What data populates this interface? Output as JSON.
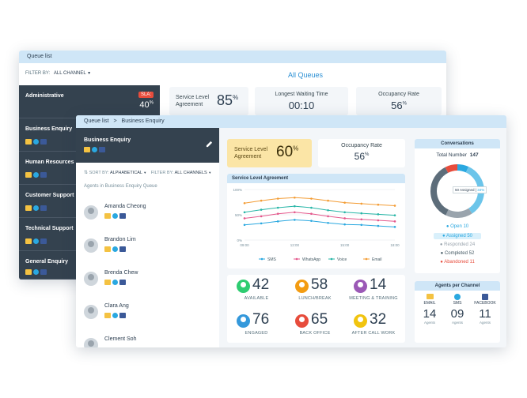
{
  "back": {
    "title": "Queue list",
    "filter_label": "FILTER BY:",
    "filter_value": "ALL CHANNEL",
    "all_queues": "All Queues",
    "sla_badge": "SLA:",
    "first_queue_percent": "40",
    "queues": [
      {
        "name": "Administrative"
      },
      {
        "name": "Business Enquiry"
      },
      {
        "name": "Human Resources"
      },
      {
        "name": "Customer Support"
      },
      {
        "name": "Technical Support"
      },
      {
        "name": "General Enquiry"
      }
    ],
    "sla_label_1": "Service Level",
    "sla_label_2": "Agreement",
    "sla_value": "85",
    "wait_label": "Longest Waiting Time",
    "wait_value": "00:10",
    "occ_label": "Occupancy Rate",
    "occ_value": "56"
  },
  "front": {
    "breadcrumb_root": "Queue list",
    "breadcrumb_sep": ">",
    "breadcrumb_current": "Business Enquiry",
    "queue_name": "Business Enquiry",
    "sort_label": "SORT BY:",
    "sort_value": "ALPHABETICAL",
    "filter_label": "FILTER BY:",
    "filter_value": "ALL CHANNELS",
    "agents_heading": "Agents in Business Enquiry Queue",
    "agents": [
      {
        "name": "Amanda Cheong"
      },
      {
        "name": "Brandon Lim"
      },
      {
        "name": "Brenda Chew"
      },
      {
        "name": "Clara Ang"
      },
      {
        "name": "Clement Soh"
      }
    ],
    "sla_label_1": "Service Level",
    "sla_label_2": "Agreement",
    "sla_value": "60",
    "occ_label": "Occupancy Rate",
    "occ_value": "56",
    "percent_sign": "%",
    "chart_title": "Service Level Agreement",
    "stats": [
      {
        "value": "42",
        "label": "AVAILABLE",
        "color": "#2ecc71"
      },
      {
        "value": "58",
        "label": "LUNCH/BREAK",
        "color": "#f39c12"
      },
      {
        "value": "14",
        "label": "MEETING & TRAINING",
        "color": "#9b59b6"
      },
      {
        "value": "76",
        "label": "ENGAGED",
        "color": "#3498db"
      },
      {
        "value": "65",
        "label": "BACK OFFICE",
        "color": "#e74c3c"
      },
      {
        "value": "32",
        "label": "AFTER CALL WORK",
        "color": "#f1c40f"
      }
    ],
    "conversations": {
      "title": "Conversations",
      "total_label": "Total Number",
      "total_value": "147",
      "tooltip": "50 Assigned |",
      "tooltip_pct": "34%",
      "legend": [
        {
          "label": "Open 10",
          "color": "#2aa8e0"
        },
        {
          "label": "Assigned 50",
          "color": "#2aa8e0"
        },
        {
          "label": "Responded 24",
          "color": "#9aa4ad"
        },
        {
          "label": "Completed 52",
          "color": "#546e7a"
        },
        {
          "label": "Abandoned 11",
          "color": "#e74c3c"
        }
      ]
    },
    "agents_per_channel": {
      "title": "Agents per Channel",
      "channels": [
        {
          "name": "EMAIL",
          "value": "14",
          "sub": "Agents"
        },
        {
          "name": "SMS",
          "value": "09",
          "sub": "Agents"
        },
        {
          "name": "FACEBOOK",
          "value": "11",
          "sub": "Agents"
        }
      ]
    }
  },
  "chart_data": {
    "type": "line",
    "title": "Service Level Agreement",
    "x": [
      "09:00",
      "10:00",
      "11:00",
      "12:00",
      "13:00",
      "14:00",
      "15:00",
      "16:00",
      "17:00",
      "18:00"
    ],
    "x_ticks": [
      "09:00",
      "12:00",
      "15:00",
      "18:00"
    ],
    "y_ticks": [
      "100%",
      "50%",
      "0%"
    ],
    "ylim": [
      0,
      100
    ],
    "grid": true,
    "legend": "bottom",
    "series": [
      {
        "name": "SMS",
        "color": "#2aa8e0",
        "values": [
          30,
          33,
          37,
          40,
          38,
          34,
          31,
          30,
          28,
          26
        ]
      },
      {
        "name": "WhatsApp",
        "color": "#e4578b",
        "values": [
          43,
          47,
          52,
          55,
          52,
          47,
          43,
          41,
          39,
          37
        ]
      },
      {
        "name": "Voice",
        "color": "#26b5a6",
        "values": [
          55,
          60,
          64,
          67,
          64,
          59,
          55,
          53,
          51,
          49
        ]
      },
      {
        "name": "Email",
        "color": "#f39c34",
        "values": [
          73,
          78,
          82,
          84,
          82,
          78,
          74,
          72,
          70,
          68
        ]
      }
    ]
  },
  "donut_data": {
    "type": "pie",
    "values": [
      10,
      50,
      24,
      52,
      11
    ],
    "colors": [
      "#2aa8e0",
      "#6cc5ea",
      "#9aa4ad",
      "#5d6d7a",
      "#e74c3c"
    ]
  }
}
